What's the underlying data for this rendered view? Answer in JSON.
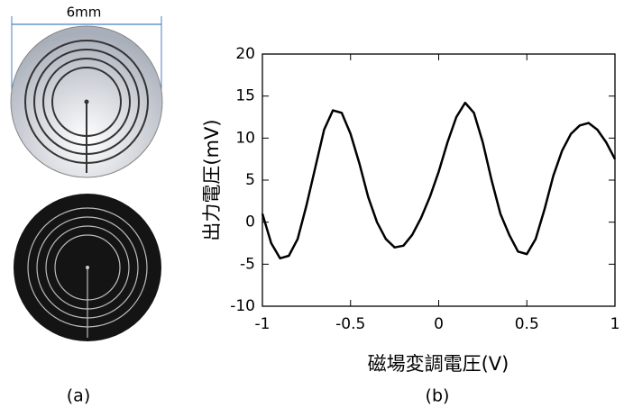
{
  "figure": {
    "scale_label": "6mm",
    "panel_a": "(a)",
    "panel_b": "(b)"
  },
  "chart_data": {
    "type": "line",
    "x": [
      -1,
      -0.95,
      -0.9,
      -0.85,
      -0.8,
      -0.75,
      -0.7,
      -0.65,
      -0.6,
      -0.55,
      -0.5,
      -0.45,
      -0.4,
      -0.35,
      -0.3,
      -0.25,
      -0.2,
      -0.15,
      -0.1,
      -0.05,
      0,
      0.05,
      0.1,
      0.15,
      0.2,
      0.25,
      0.3,
      0.35,
      0.4,
      0.45,
      0.5,
      0.55,
      0.6,
      0.65,
      0.7,
      0.75,
      0.8,
      0.85,
      0.9,
      0.95,
      1
    ],
    "values": [
      1,
      -2.5,
      -4.3,
      -4,
      -2,
      2,
      6.5,
      11,
      13.3,
      13,
      10.5,
      7,
      3,
      0,
      -2,
      -3,
      -2.8,
      -1.5,
      0.5,
      3,
      6,
      9.5,
      12.5,
      14.2,
      13,
      9.5,
      5,
      1,
      -1.5,
      -3.5,
      -3.8,
      -2,
      1.5,
      5.5,
      8.5,
      10.5,
      11.5,
      11.8,
      11,
      9.5,
      7.5
    ],
    "color": "#000000",
    "xlabel": "磁場変調電圧(V)",
    "ylabel": "出力電圧(mV)",
    "xlim": [
      -1,
      1
    ],
    "xticks": [
      -1,
      -0.5,
      0,
      0.5,
      1
    ],
    "ylim": [
      -10,
      20
    ],
    "yticks": [
      -10,
      -5,
      0,
      5,
      10,
      15,
      20
    ]
  }
}
